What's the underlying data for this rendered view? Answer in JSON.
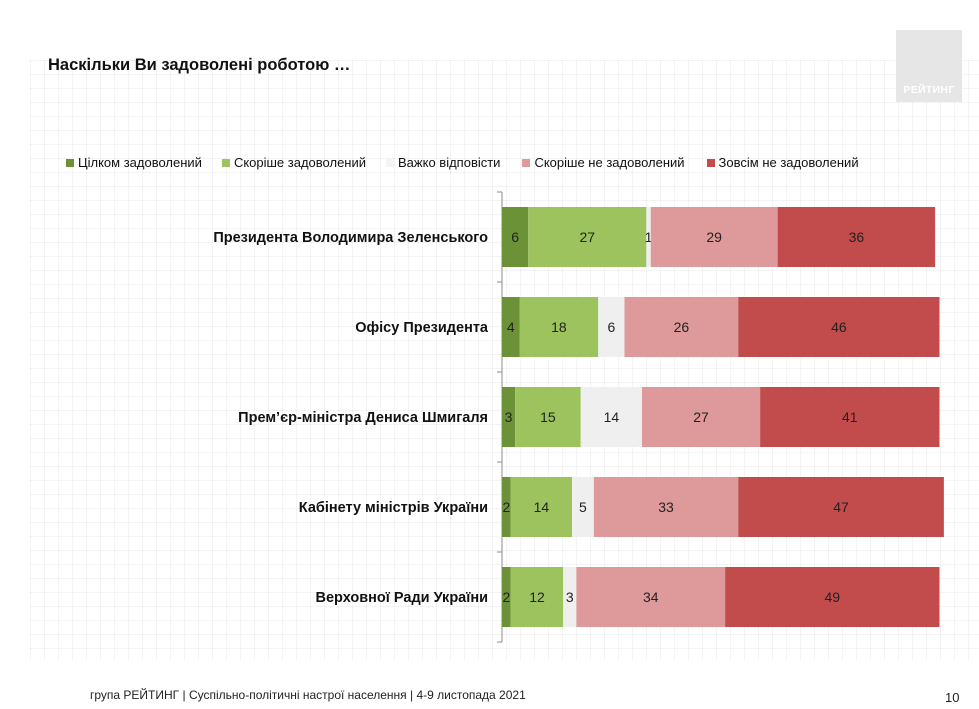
{
  "title": "Наскільки Ви задоволені роботою …",
  "logo_text": "РЕЙТИНГ",
  "footer": "група РЕЙТИНГ | Суспільно-політичні настрої населення  | 4-9 листопада 2021",
  "page_number": "10",
  "chart_data": {
    "type": "bar",
    "orientation": "horizontal",
    "stacked": true,
    "title": "Наскільки Ви задоволені роботою …",
    "xlabel": "",
    "ylabel": "",
    "legend_position": "top",
    "categories": [
      "Президента Володимира Зеленського",
      "Офісу Президента",
      "Прем’єр-міністра Дениса Шмигаля",
      "Кабінету міністрів України",
      "Верховної Ради України"
    ],
    "series": [
      {
        "name": "Цілком задоволений",
        "color": "#6b9237",
        "values": [
          6,
          4,
          3,
          2,
          2
        ]
      },
      {
        "name": "Скоріше задоволений",
        "color": "#9cc35d",
        "values": [
          27,
          18,
          15,
          14,
          12
        ]
      },
      {
        "name": "Важко відповісти",
        "color": "#efefef",
        "values": [
          1,
          6,
          14,
          5,
          3
        ]
      },
      {
        "name": "Скоріше не задоволений",
        "color": "#de9a9a",
        "values": [
          29,
          26,
          27,
          33,
          34
        ]
      },
      {
        "name": "Зовсім не задоволений",
        "color": "#c24b4b",
        "values": [
          36,
          46,
          41,
          47,
          49
        ]
      }
    ]
  }
}
